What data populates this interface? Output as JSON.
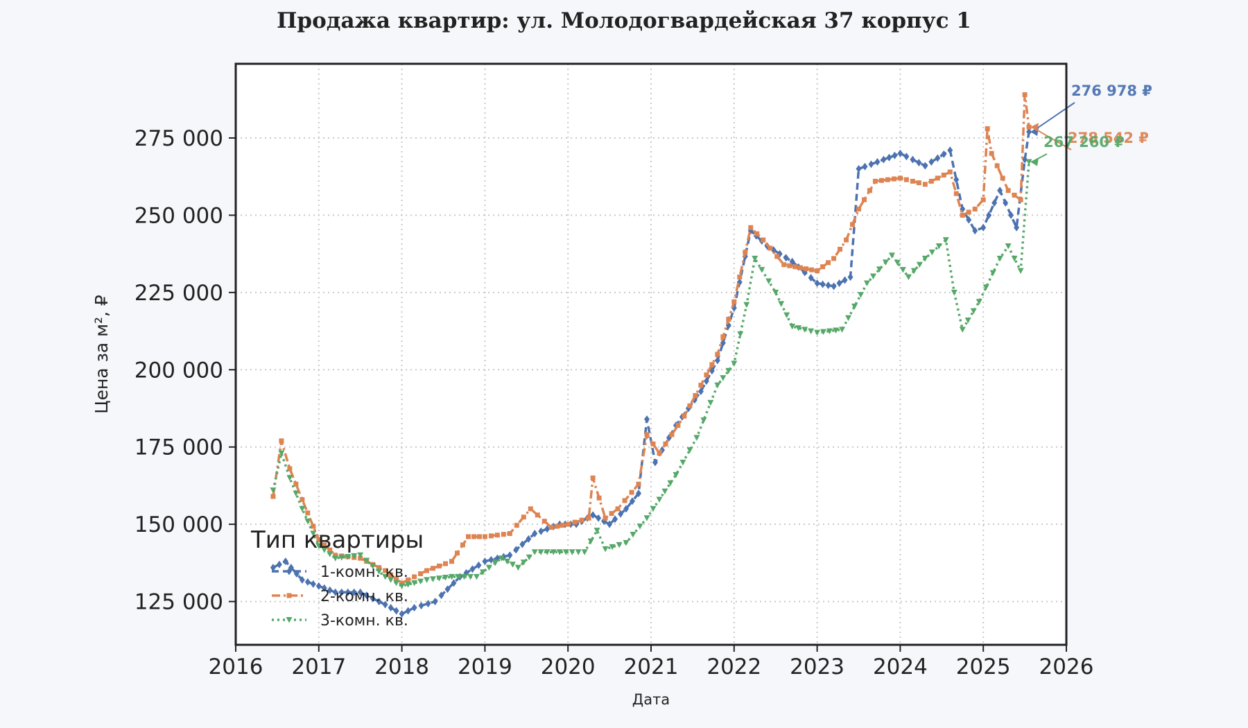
{
  "chart_data": {
    "type": "line",
    "title": "Продажа квартир: ул. Молодогвардейская 37 корпус 1",
    "xlabel": "Дата",
    "ylabel": "Цена за м², ₽",
    "xlim": [
      2016,
      2026
    ],
    "ylim": [
      111000,
      299000
    ],
    "x_ticks": [
      "2016",
      "2017",
      "2018",
      "2019",
      "2020",
      "2021",
      "2022",
      "2023",
      "2024",
      "2025",
      "2026"
    ],
    "y_ticks": [
      "125 000",
      "150 000",
      "175 000",
      "200 000",
      "225 000",
      "250 000",
      "275 000"
    ],
    "y_tick_values": [
      125000,
      150000,
      175000,
      200000,
      225000,
      250000,
      275000
    ],
    "grid": true,
    "legend": {
      "title": "Тип квартиры",
      "position": "lower-left"
    },
    "series": [
      {
        "name": "1-комн. кв.",
        "color": "#4c72b0",
        "marker": "diamond",
        "line_style": "dashed",
        "end_label": "276 978 ₽",
        "x": [
          2016.45,
          2016.6,
          2016.8,
          2017.0,
          2017.2,
          2017.5,
          2017.8,
          2018.0,
          2018.15,
          2018.4,
          2018.7,
          2019.0,
          2019.3,
          2019.6,
          2019.9,
          2020.1,
          2020.3,
          2020.5,
          2020.7,
          2020.85,
          2020.95,
          2021.05,
          2021.3,
          2021.6,
          2021.8,
          2022.0,
          2022.2,
          2022.4,
          2022.7,
          2023.0,
          2023.2,
          2023.4,
          2023.5,
          2023.8,
          2024.0,
          2024.3,
          2024.6,
          2024.75,
          2024.9,
          2025.0,
          2025.2,
          2025.4,
          2025.5,
          2025.55
        ],
        "y": [
          136000,
          138000,
          132000,
          130000,
          128000,
          128000,
          124000,
          121000,
          123000,
          125000,
          133000,
          138000,
          140000,
          147000,
          150000,
          150000,
          153000,
          150000,
          155000,
          160000,
          184000,
          170000,
          182000,
          193000,
          203000,
          220000,
          245000,
          240000,
          235000,
          228000,
          227000,
          230000,
          265000,
          268000,
          270000,
          266000,
          271000,
          252000,
          245000,
          246000,
          258000,
          246000,
          268000,
          276978
        ]
      },
      {
        "name": "2-комн. кв.",
        "color": "#dd8452",
        "marker": "square",
        "line_style": "dash-dot",
        "end_label": "278 542 ₽",
        "x": [
          2016.45,
          2016.55,
          2016.65,
          2016.8,
          2017.0,
          2017.2,
          2017.5,
          2017.8,
          2018.0,
          2018.3,
          2018.6,
          2018.8,
          2019.0,
          2019.3,
          2019.55,
          2019.8,
          2020.0,
          2020.25,
          2020.3,
          2020.45,
          2020.6,
          2020.85,
          2020.95,
          2021.1,
          2021.4,
          2021.6,
          2021.8,
          2022.0,
          2022.2,
          2022.35,
          2022.6,
          2022.8,
          2023.0,
          2023.2,
          2023.35,
          2023.5,
          2023.7,
          2024.0,
          2024.3,
          2024.6,
          2024.75,
          2024.9,
          2025.0,
          2025.05,
          2025.1,
          2025.3,
          2025.45,
          2025.5,
          2025.55
        ],
        "y": [
          159000,
          177000,
          168000,
          158000,
          145000,
          140000,
          139000,
          135000,
          131000,
          135000,
          138000,
          146000,
          146000,
          147000,
          155000,
          149000,
          150000,
          152000,
          165000,
          152000,
          155000,
          163000,
          179000,
          173000,
          185000,
          195000,
          205000,
          222000,
          246000,
          242000,
          234000,
          233000,
          232000,
          236000,
          242000,
          252000,
          261000,
          262000,
          260000,
          264000,
          250000,
          252000,
          255000,
          278000,
          270000,
          258000,
          255000,
          289000,
          278542
        ]
      },
      {
        "name": "3-комн. кв.",
        "color": "#55a868",
        "marker": "triangle-down",
        "line_style": "dotted",
        "end_label": "267 260 ₽",
        "x": [
          2016.45,
          2016.55,
          2016.65,
          2016.8,
          2017.0,
          2017.2,
          2017.5,
          2017.8,
          2018.0,
          2018.3,
          2018.6,
          2018.9,
          2019.2,
          2019.4,
          2019.6,
          2019.9,
          2020.2,
          2020.35,
          2020.45,
          2020.7,
          2020.95,
          2021.1,
          2021.3,
          2021.55,
          2021.8,
          2022.0,
          2022.15,
          2022.25,
          2022.5,
          2022.7,
          2023.0,
          2023.3,
          2023.6,
          2023.9,
          2024.1,
          2024.3,
          2024.55,
          2024.65,
          2024.75,
          2024.95,
          2025.2,
          2025.3,
          2025.45,
          2025.55
        ],
        "y": [
          161000,
          173000,
          165000,
          155000,
          143000,
          139000,
          140000,
          133000,
          130000,
          132000,
          133000,
          133000,
          139000,
          136000,
          141000,
          141000,
          141000,
          148000,
          142000,
          144000,
          152000,
          158000,
          166000,
          178000,
          195000,
          202000,
          221000,
          236000,
          225000,
          214000,
          212000,
          213000,
          228000,
          237000,
          230000,
          236000,
          242000,
          225000,
          213000,
          222000,
          236000,
          240000,
          232000,
          267260
        ]
      }
    ]
  }
}
